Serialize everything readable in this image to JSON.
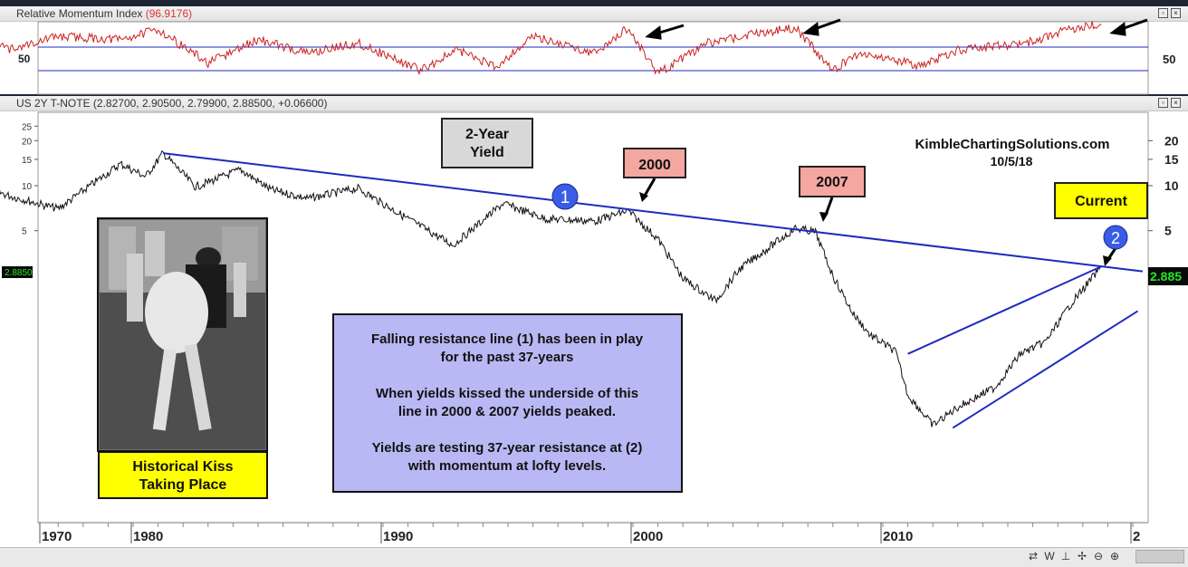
{
  "rmi_panel": {
    "title": "Relative Momentum Index",
    "value": "(96.9176)",
    "level_label_left": "50",
    "level_label_right": "50"
  },
  "price_panel": {
    "title": "US 2Y T-NOTE (2.82700, 2.90500, 2.79900, 2.88500, +0.06600)",
    "last_left": "2.8850",
    "last_right": "2.885",
    "brand": "KimbleChartingSolutions.com",
    "date": "10/5/18",
    "label_2year": "2-Year",
    "label_yield": "Yield",
    "label_2000": "2000",
    "label_2007": "2007",
    "label_current": "Current",
    "marker_1": "1",
    "marker_2": "2",
    "kiss_line1": "Historical Kiss",
    "kiss_line2": "Taking Place",
    "note": [
      "Falling resistance line (1) has been in play",
      "for the past 37-years",
      "",
      "When yields kissed the underside of this",
      "line in 2000 & 2007 yields peaked.",
      "",
      "Yields are testing 37-year resistance at (2)",
      "with momentum at lofty levels."
    ]
  },
  "colors": {
    "price_line": "#111111",
    "rmi_line": "#cc2222",
    "trend_line": "#1c2bbf",
    "label_red": "#f4a6a0",
    "label_gray": "#d8d8d8",
    "label_yellow": "#ffff00",
    "note_bg": "#b8b8f4",
    "marker_blue": "#3a5ce6",
    "last_box": "#0a0a0a",
    "last_text": "#23e823"
  },
  "chart_data": {
    "type": "line",
    "log_scale": true,
    "x_tick_labels": [
      "1970",
      "1980",
      "1990",
      "2000",
      "2010",
      "2"
    ],
    "y_tick_labels_left": [
      "25",
      "20",
      "15",
      "10",
      "5"
    ],
    "y_tick_labels_right": [
      "20",
      "15",
      "10",
      "5"
    ],
    "series": [
      {
        "name": "US 2Y T-NOTE",
        "x": [
          1968,
          1969.5,
          1971,
          1973,
          1974.3,
          1975,
          1977,
          1979.5,
          1980.5,
          1981.2,
          1982.5,
          1984.3,
          1985.5,
          1987,
          1989,
          1991,
          1992.8,
          1994.8,
          1996.5,
          1998.5,
          1999.8,
          2001,
          2002,
          2003.3,
          2004.3,
          2006.5,
          2007.3,
          2008,
          2008.8,
          2009.5,
          2010.5,
          2011,
          2012,
          2013,
          2014.5,
          2015.5,
          2016.5,
          2017.5,
          2018.75
        ],
        "y": [
          7.5,
          5.8,
          6.8,
          7.6,
          9.4,
          8.6,
          7.0,
          14.0,
          11.5,
          16.5,
          9.8,
          12.8,
          9.4,
          8.2,
          9.6,
          6.0,
          4.0,
          7.6,
          6.0,
          5.8,
          6.8,
          4.4,
          2.4,
          1.7,
          2.8,
          5.2,
          4.9,
          2.5,
          1.4,
          1.0,
          0.78,
          0.4,
          0.25,
          0.33,
          0.45,
          0.75,
          0.9,
          1.6,
          2.885
        ]
      },
      {
        "name": "Falling resistance line (1)",
        "x": [
          1981.2,
          2018.75
        ],
        "y": [
          16.5,
          2.885
        ]
      },
      {
        "name": "Rising channel upper",
        "x": [
          2011.0,
          2018.75
        ],
        "y": [
          0.75,
          2.885
        ]
      },
      {
        "name": "Rising channel lower",
        "x": [
          2012.8,
          2020.2
        ],
        "y": [
          0.24,
          1.45
        ]
      }
    ],
    "rmi": {
      "name": "Relative Momentum Index",
      "last_value": 96.9176,
      "x": [
        1968,
        1970,
        1972,
        1973.5,
        1975,
        1977,
        1979.5,
        1981,
        1983,
        1985,
        1987,
        1989,
        1991.5,
        1993,
        1994.5,
        1996,
        1998.5,
        1999.8,
        2001,
        2003,
        2005,
        2006.5,
        2008,
        2009,
        2010,
        2011.5,
        2013,
        2014.5,
        2016,
        2017,
        2018,
        2018.75
      ],
      "y": [
        30,
        60,
        85,
        95,
        60,
        80,
        75,
        90,
        40,
        75,
        55,
        70,
        30,
        60,
        35,
        80,
        55,
        92,
        25,
        70,
        85,
        92,
        30,
        55,
        50,
        35,
        60,
        65,
        72,
        85,
        95,
        96.9
      ]
    }
  }
}
